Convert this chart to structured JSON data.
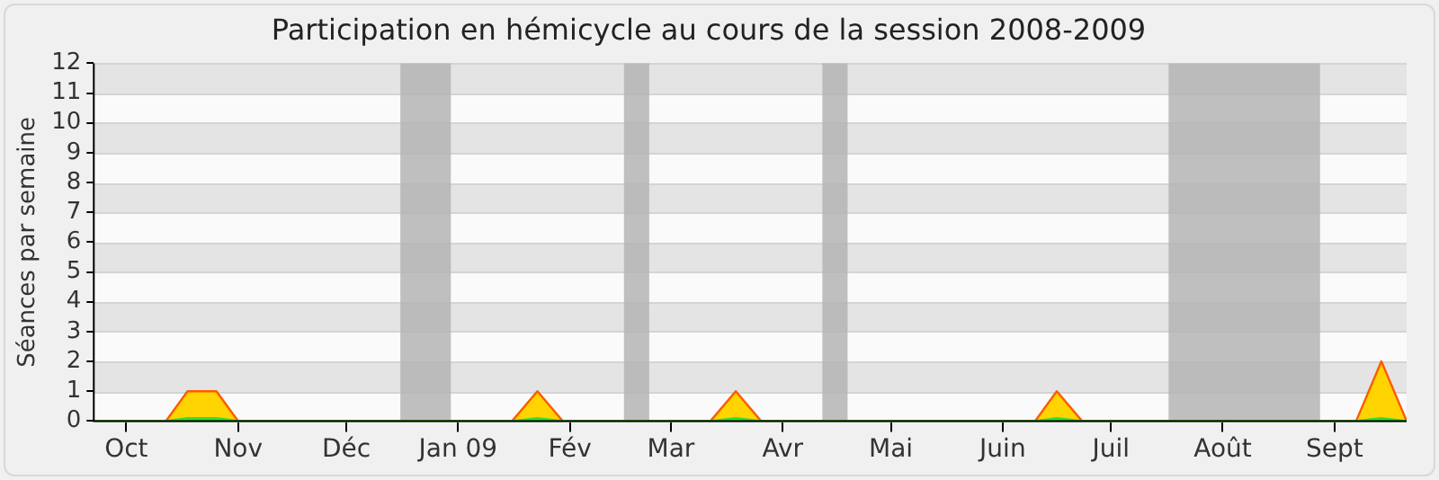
{
  "chart_data": {
    "type": "area",
    "title": "Participation en hémicycle au cours de la session 2008-2009",
    "ylabel": "Séances par semaine",
    "xlim": [
      "2008-09-22",
      "2009-09-21"
    ],
    "xticks": [
      {
        "value": "2008-10-01",
        "label": "Oct"
      },
      {
        "value": "2008-11-01",
        "label": "Nov"
      },
      {
        "value": "2008-12-01",
        "label": "Déc"
      },
      {
        "value": "2009-01-01",
        "label": "Jan 09"
      },
      {
        "value": "2009-02-01",
        "label": "Fév"
      },
      {
        "value": "2009-03-01",
        "label": "Mar"
      },
      {
        "value": "2009-04-01",
        "label": "Avr"
      },
      {
        "value": "2009-05-01",
        "label": "Mai"
      },
      {
        "value": "2009-06-01",
        "label": "Juin"
      },
      {
        "value": "2009-07-01",
        "label": "Juil"
      },
      {
        "value": "2009-08-01",
        "label": "Août"
      },
      {
        "value": "2009-09-01",
        "label": "Sept"
      }
    ],
    "ylim": [
      0,
      12
    ],
    "yticks": [
      0,
      1,
      2,
      3,
      4,
      5,
      6,
      7,
      8,
      9,
      10,
      11,
      12
    ],
    "grid": "y",
    "legend": false,
    "marker": "none",
    "bands": [
      {
        "axis": "x",
        "from": "2008-12-16",
        "to": "2008-12-30",
        "color": "#b4b4b4"
      },
      {
        "axis": "x",
        "from": "2009-02-16",
        "to": "2009-02-23",
        "color": "#b4b4b4"
      },
      {
        "axis": "x",
        "from": "2009-04-12",
        "to": "2009-04-19",
        "color": "#b4b4b4"
      },
      {
        "axis": "x",
        "from": "2009-07-17",
        "to": "2009-08-28",
        "color": "#b4b4b4"
      }
    ],
    "series": [
      {
        "color": "#ffd400",
        "x": [
          "2008-09-22",
          "2008-10-12",
          "2008-10-18",
          "2008-10-26",
          "2008-11-01",
          "2009-01-16",
          "2009-01-23",
          "2009-01-30",
          "2009-03-12",
          "2009-03-19",
          "2009-03-26",
          "2009-06-10",
          "2009-06-16",
          "2009-06-23",
          "2009-09-07",
          "2009-09-14",
          "2009-09-21"
        ],
        "values": [
          0,
          0,
          1,
          1,
          0,
          0,
          1,
          0,
          0,
          1,
          0,
          0,
          1,
          0,
          0,
          2,
          0
        ]
      },
      {
        "color": "#33dd33",
        "x": [
          "2008-09-22",
          "2008-10-12",
          "2008-10-18",
          "2008-10-26",
          "2008-11-01",
          "2009-01-16",
          "2009-01-23",
          "2009-01-30",
          "2009-03-12",
          "2009-03-19",
          "2009-03-26",
          "2009-06-10",
          "2009-06-16",
          "2009-06-23",
          "2009-09-07",
          "2009-09-14",
          "2009-09-21"
        ],
        "values": [
          0,
          0,
          0.1,
          0.1,
          0,
          0,
          0.1,
          0,
          0,
          0.1,
          0,
          0,
          0.1,
          0,
          0,
          0.1,
          0
        ]
      }
    ]
  }
}
